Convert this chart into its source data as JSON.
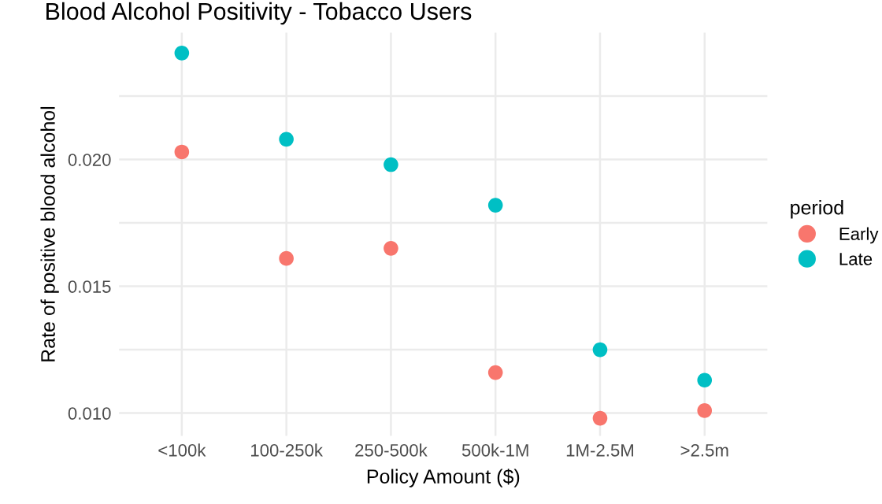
{
  "chart_data": {
    "type": "scatter",
    "title": "Blood Alcohol Positivity - Tobacco Users",
    "xlabel": "Policy Amount ($)",
    "ylabel": "Rate of positive blood alcohol",
    "legend_title": "period",
    "categories": [
      "<100k",
      "100-250k",
      "250-500k",
      "500k-1M",
      "1M-2.5M",
      ">2.5m"
    ],
    "series": [
      {
        "name": "Early",
        "color": "#f8766d",
        "values": [
          0.0203,
          0.0161,
          0.0165,
          0.0116,
          0.0098,
          0.0101
        ]
      },
      {
        "name": "Late",
        "color": "#00bfc4",
        "values": [
          0.0242,
          0.0208,
          0.0198,
          0.0182,
          0.0125,
          0.0113
        ]
      }
    ],
    "ylim": [
      0.0091,
      0.025
    ],
    "yticks": [
      {
        "value": 0.01,
        "label": "0.010"
      },
      {
        "value": 0.0125,
        "label": null
      },
      {
        "value": 0.015,
        "label": "0.015"
      },
      {
        "value": 0.0175,
        "label": null
      },
      {
        "value": 0.02,
        "label": "0.020"
      },
      {
        "value": 0.0225,
        "label": null
      }
    ],
    "grid": true,
    "legend": "right",
    "marker": "circle"
  }
}
